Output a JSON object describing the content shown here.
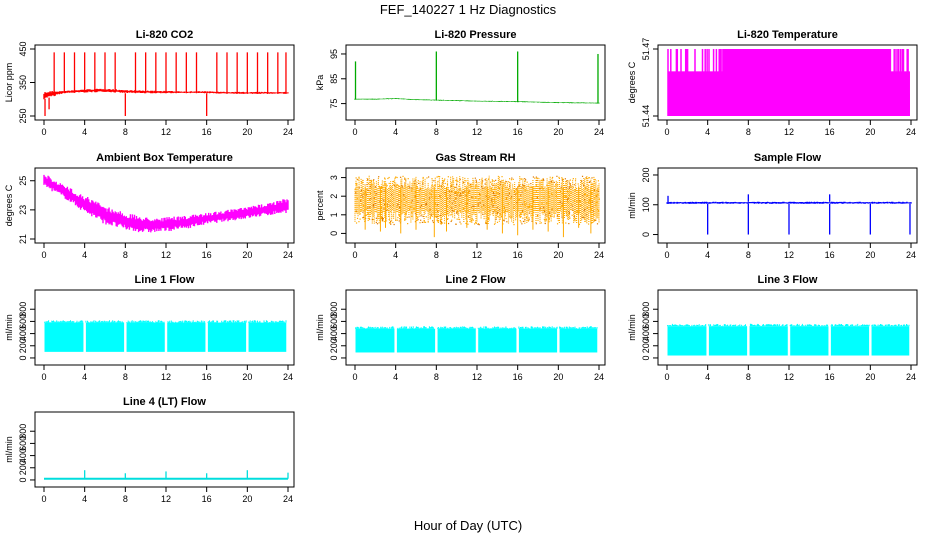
{
  "figure": {
    "title": "FEF_140227  1 Hz Diagnostics",
    "xlabel": "Hour of Day (UTC)"
  },
  "chart_data": [
    {
      "type": "line",
      "title": "Li-820 CO2",
      "ylabel": "Licor ppm",
      "color": "#ff0000",
      "xlim": [
        0,
        24
      ],
      "ylim": [
        250,
        450
      ],
      "xticks": [
        "0",
        "4",
        "8",
        "12",
        "16",
        "20",
        "24"
      ],
      "yticks": [
        "250",
        "350",
        "450"
      ],
      "series": [
        {
          "band": {
            "x": [
              0,
              0.5,
              2,
              4,
              6,
              8,
              10,
              12,
              14,
              16,
              18,
              20,
              22,
              24
            ],
            "low": [
              300,
              305,
              318,
              320,
              322,
              318,
              318,
              318,
              318,
              318,
              316,
              316,
              316,
              316
            ],
            "high": [
              322,
              325,
              325,
              330,
              332,
              328,
              326,
              325,
              324,
              324,
              322,
              322,
              322,
              322
            ]
          },
          "spikes": [
            0.1,
            0.5,
            1,
            2,
            3,
            4,
            5,
            6,
            7,
            8,
            9,
            10,
            11,
            12,
            13,
            14,
            15,
            16,
            17,
            18,
            19,
            20,
            21,
            22,
            23,
            23.8
          ],
          "spike_values": [
            250,
            270,
            440,
            440,
            440,
            440,
            440,
            440,
            440,
            250,
            440,
            440,
            440,
            440,
            440,
            440,
            440,
            250,
            440,
            440,
            440,
            440,
            440,
            440,
            440,
            440
          ]
        }
      ]
    },
    {
      "type": "line",
      "title": "Li-820 Pressure",
      "ylabel": "kPa",
      "color": "#00aa00",
      "xlim": [
        0,
        24
      ],
      "ylim": [
        70,
        97
      ],
      "xticks": [
        "0",
        "4",
        "8",
        "12",
        "16",
        "20",
        "24"
      ],
      "yticks": [
        "75",
        "85",
        "95"
      ],
      "series": [
        {
          "band": {
            "x": [
              0,
              2,
              4,
              6,
              8,
              12,
              16,
              20,
              24
            ],
            "low": [
              76.6,
              76.6,
              76.8,
              76.4,
              76.2,
              75.8,
              75.6,
              75.2,
              75.0
            ],
            "high": [
              77.0,
              77.0,
              77.2,
              76.8,
              76.6,
              76.2,
              76.0,
              75.6,
              75.4
            ]
          },
          "spikes": [
            0.05,
            8,
            16,
            23.9
          ],
          "spike_values": [
            92,
            96,
            96,
            95
          ]
        }
      ]
    },
    {
      "type": "line",
      "title": "Li-820 Temperature",
      "ylabel": "degrees C",
      "color": "#ff00ff",
      "xlim": [
        0,
        24
      ],
      "ylim": [
        51.44,
        51.47
      ],
      "xticks": [
        "0",
        "4",
        "8",
        "12",
        "16",
        "20",
        "24"
      ],
      "yticks": [
        "51.44",
        "51.47"
      ],
      "series": [
        {
          "levels": [
            51.44,
            51.45,
            51.46,
            51.47
          ],
          "quantization": true
        }
      ]
    },
    {
      "type": "line",
      "title": "Ambient Box Temperature",
      "ylabel": "degrees C",
      "color": "#ff00ff",
      "xlim": [
        0,
        24
      ],
      "ylim": [
        21,
        25.6
      ],
      "xticks": [
        "0",
        "4",
        "8",
        "12",
        "16",
        "20",
        "24"
      ],
      "yticks": [
        "21",
        "23",
        "25"
      ],
      "series": [
        {
          "band": {
            "x": [
              0,
              1,
              2,
              4,
              6,
              8,
              10,
              12,
              14,
              16,
              18,
              20,
              22,
              24
            ],
            "low": [
              24.6,
              24.2,
              23.8,
              22.8,
              22.0,
              21.6,
              21.4,
              21.5,
              21.7,
              22.0,
              22.2,
              22.4,
              22.6,
              22.8
            ],
            "high": [
              25.5,
              25.1,
              24.7,
              24.0,
              23.3,
              22.8,
              22.5,
              22.5,
              22.6,
              22.8,
              23.0,
              23.2,
              23.5,
              23.8
            ]
          }
        }
      ]
    },
    {
      "type": "scatter",
      "title": "Gas Stream RH",
      "ylabel": "percent",
      "color": "#ffaa00",
      "xlim": [
        0,
        24
      ],
      "ylim": [
        -0.3,
        3.3
      ],
      "xticks": [
        "0",
        "4",
        "8",
        "12",
        "16",
        "20",
        "24"
      ],
      "yticks": [
        "0",
        "1",
        "2",
        "3"
      ],
      "series": [
        {
          "band": {
            "x": [
              0,
              24
            ],
            "low": [
              0.5,
              0.5
            ],
            "high": [
              3.1,
              3.1
            ]
          },
          "dips": [
            1,
            2.5,
            3,
            4.5,
            6,
            7.8,
            9,
            11,
            13,
            14.5,
            16,
            17.5,
            19,
            20.5,
            22,
            23.2
          ],
          "dip_values": [
            0.2,
            0.1,
            0.3,
            0.0,
            0.2,
            -0.2,
            0.1,
            0.3,
            0.2,
            0.0,
            -0.1,
            0.2,
            0.1,
            -0.2,
            0.3,
            0.0
          ]
        }
      ]
    },
    {
      "type": "line",
      "title": "Sample Flow",
      "ylabel": "ml/min",
      "color": "#0000ff",
      "xlim": [
        0,
        24
      ],
      "ylim": [
        -15,
        210
      ],
      "xticks": [
        "0",
        "4",
        "8",
        "12",
        "16",
        "20",
        "24"
      ],
      "yticks": [
        "0",
        "100",
        "200"
      ],
      "series": [
        {
          "band": {
            "x": [
              0,
              24
            ],
            "low": [
              103,
              103
            ],
            "high": [
              110,
              110
            ]
          },
          "spikes": [
            0.1,
            4,
            8,
            12,
            16,
            20,
            23.9
          ],
          "spike_values": [
            130,
            0,
            0,
            0,
            0,
            0,
            0
          ],
          "upspikes": [
            8,
            16
          ],
          "upspike_values": [
            135,
            135
          ]
        }
      ]
    },
    {
      "type": "area",
      "title": "Line 1 Flow",
      "ylabel": "ml/min",
      "color": "#00ffff",
      "xlim": [
        0,
        24
      ],
      "ylim": [
        -50,
        1050
      ],
      "xticks": [
        "0",
        "4",
        "8",
        "12",
        "16",
        "20",
        "24"
      ],
      "yticks": [
        "0",
        "200",
        "400",
        "600",
        "800"
      ],
      "series": [
        {
          "low": 100,
          "high": 620,
          "gaps": [
            4,
            8,
            12,
            16,
            20
          ]
        }
      ]
    },
    {
      "type": "area",
      "title": "Line 2 Flow",
      "ylabel": "ml/min",
      "color": "#00ffff",
      "xlim": [
        0,
        24
      ],
      "ylim": [
        -50,
        1050
      ],
      "xticks": [
        "0",
        "4",
        "8",
        "12",
        "16",
        "20",
        "24"
      ],
      "yticks": [
        "0",
        "200",
        "400",
        "600",
        "800"
      ],
      "series": [
        {
          "low": 90,
          "high": 520,
          "gaps": [
            4,
            8,
            12,
            16,
            20
          ]
        }
      ]
    },
    {
      "type": "area",
      "title": "Line 3 Flow",
      "ylabel": "ml/min",
      "color": "#00ffff",
      "xlim": [
        0,
        24
      ],
      "ylim": [
        -50,
        1050
      ],
      "xticks": [
        "0",
        "4",
        "8",
        "12",
        "16",
        "20",
        "24"
      ],
      "yticks": [
        "0",
        "200",
        "400",
        "600",
        "800"
      ],
      "series": [
        {
          "low": 40,
          "high": 560,
          "gaps": [
            4,
            8,
            12,
            16,
            20
          ]
        }
      ]
    },
    {
      "type": "line",
      "title": "Line 4 (LT) Flow",
      "ylabel": "ml/min",
      "color": "#00dddd",
      "xlim": [
        0,
        24
      ],
      "ylim": [
        -50,
        1050
      ],
      "xticks": [
        "0",
        "4",
        "8",
        "12",
        "16",
        "20",
        "24"
      ],
      "yticks": [
        "0",
        "200",
        "400",
        "600",
        "800"
      ],
      "series": [
        {
          "baseline": 20,
          "spikes": [
            4,
            8,
            12,
            16,
            20,
            24
          ],
          "spike_values": [
            160,
            110,
            140,
            110,
            160,
            120
          ]
        }
      ]
    }
  ]
}
